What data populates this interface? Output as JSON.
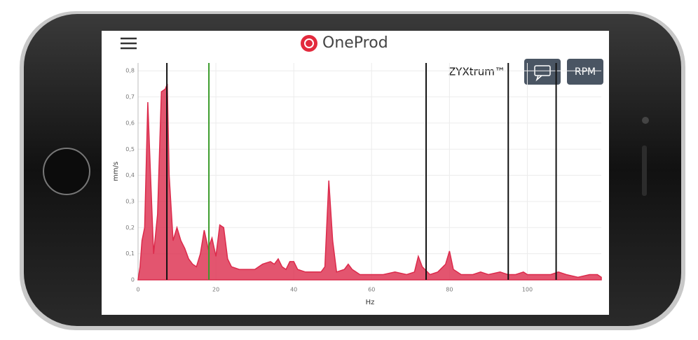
{
  "app": {
    "brand": "OneProd",
    "title": "ZYXtrum™",
    "rpm_button": "RPM"
  },
  "chart_data": {
    "type": "area",
    "x_label": "Hz",
    "y_label": "mm/s",
    "xlim": [
      0,
      119
    ],
    "xticks": [
      0,
      20,
      40,
      60,
      80,
      100
    ],
    "ylim": [
      0,
      0.83
    ],
    "yticks": [
      0,
      {
        "value": 0.1,
        "label": "0,1"
      },
      {
        "value": 0.2,
        "label": "0,2"
      },
      {
        "value": 0.3,
        "label": "0,3"
      },
      {
        "value": 0.4,
        "label": "0,4"
      },
      {
        "value": 0.5,
        "label": "0,5"
      },
      {
        "value": 0.6,
        "label": "0,6"
      },
      {
        "value": 0.7,
        "label": "0,7"
      },
      {
        "value": 0.8,
        "label": "0,8"
      }
    ],
    "grid": true,
    "series": [
      {
        "color": "#dc2a4b",
        "x": [
          0,
          0.5,
          1,
          1.7,
          2.5,
          3.2,
          4,
          5,
          6,
          7,
          7.5,
          8,
          9,
          10,
          11,
          12,
          13,
          14,
          15,
          16,
          17,
          18,
          19,
          20,
          21,
          22,
          23,
          24,
          26,
          28,
          30,
          32,
          34,
          35,
          36,
          37,
          38,
          39,
          40,
          41,
          43,
          45,
          47,
          48,
          49,
          50,
          51,
          53,
          54,
          55,
          57,
          60,
          63,
          66,
          69,
          71,
          72,
          73,
          75,
          77,
          79,
          80,
          81,
          83,
          86,
          88,
          90,
          93,
          95,
          97,
          99,
          100,
          103,
          106,
          108,
          110,
          113,
          116,
          118,
          119
        ],
        "values": [
          0,
          0.05,
          0.15,
          0.2,
          0.68,
          0.4,
          0.1,
          0.25,
          0.72,
          0.73,
          0.75,
          0.4,
          0.15,
          0.2,
          0.15,
          0.12,
          0.08,
          0.06,
          0.05,
          0.1,
          0.19,
          0.12,
          0.16,
          0.09,
          0.21,
          0.2,
          0.08,
          0.05,
          0.04,
          0.04,
          0.04,
          0.06,
          0.07,
          0.06,
          0.08,
          0.05,
          0.04,
          0.07,
          0.07,
          0.04,
          0.03,
          0.03,
          0.03,
          0.05,
          0.38,
          0.15,
          0.03,
          0.04,
          0.06,
          0.04,
          0.02,
          0.02,
          0.02,
          0.03,
          0.02,
          0.03,
          0.09,
          0.05,
          0.02,
          0.03,
          0.06,
          0.11,
          0.04,
          0.02,
          0.02,
          0.03,
          0.02,
          0.03,
          0.02,
          0.02,
          0.03,
          0.02,
          0.02,
          0.02,
          0.03,
          0.02,
          0.01,
          0.02,
          0.02,
          0.01
        ]
      }
    ],
    "markers": [
      {
        "x": 7.4,
        "color": "#111111"
      },
      {
        "x": 18.2,
        "color": "#3a9a2a"
      },
      {
        "x": 74,
        "color": "#111111"
      },
      {
        "x": 95.1,
        "color": "#111111"
      },
      {
        "x": 107.4,
        "color": "#111111"
      }
    ]
  }
}
